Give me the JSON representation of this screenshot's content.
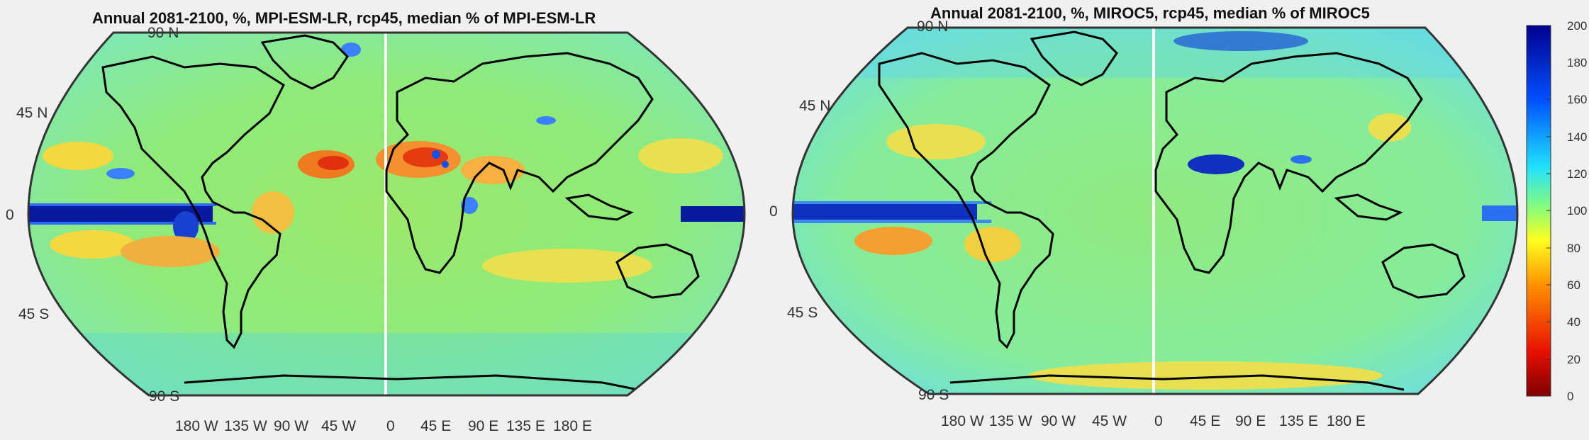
{
  "maps": [
    {
      "title": "Annual 2081-2100, %, MPI-ESM-LR, rcp45, median % of MPI-ESM-LR",
      "lat_labels": [
        "90  N",
        "45  N",
        "0 ",
        "45  S",
        "90  S"
      ],
      "lon_labels": [
        "180  W",
        "135  W",
        "90  W",
        "45  W",
        "0 ",
        "45  E",
        "90  E",
        "135  E",
        "180  E"
      ]
    },
    {
      "title": "Annual 2081-2100, %, MIROC5, rcp45, median % of MIROC5",
      "lat_labels": [
        "90  N",
        "45  N",
        "0 ",
        "45  S",
        "90  S"
      ],
      "lon_labels": [
        "180  W",
        "135  W",
        "90  W",
        "45  W",
        "0 ",
        "45  E",
        "90  E",
        "135  E",
        "180  E"
      ]
    }
  ],
  "colorbar": {
    "ticks": [
      "200",
      "180",
      "160",
      "140",
      "120",
      "100",
      "80",
      "60",
      "40",
      "20",
      "0"
    ],
    "range": [
      0,
      200
    ],
    "colors": [
      "#7f0000",
      "#ff3000",
      "#ffa000",
      "#ffff00",
      "#80ff80",
      "#00c8ff",
      "#0060ff",
      "#00008f"
    ]
  }
}
